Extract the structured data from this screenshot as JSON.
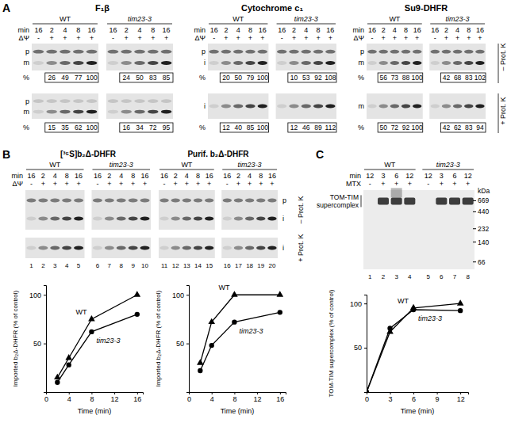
{
  "figure": {
    "panel_a": {
      "letter": "A",
      "groups": [
        "WT",
        "tim23-3"
      ],
      "min_label": "min",
      "min": [
        "16",
        "2",
        "4",
        "8",
        "16",
        "16",
        "2",
        "4",
        "8",
        "16"
      ],
      "dpsi_label": "ΔΨ",
      "dpsi": [
        "-",
        "+",
        "+",
        "+",
        "+",
        "-",
        "+",
        "+",
        "+",
        "+"
      ],
      "pct_label": "%",
      "minus_pk": "– Prot. K",
      "plus_pk": "+ Prot. K",
      "gels": [
        {
          "title": "F₁β",
          "upper_bands": [
            "p",
            "m"
          ],
          "lower_bands": [
            "p",
            "m"
          ],
          "upper_pct": [
            [
              26,
              49,
              77,
              100
            ],
            [
              24,
              50,
              83,
              85
            ]
          ],
          "lower_pct": [
            [
              15,
              35,
              62,
              100
            ],
            [
              16,
              34,
              72,
              95
            ]
          ]
        },
        {
          "title": "Cytochrome c₁",
          "upper_bands": [
            "p",
            "i"
          ],
          "lower_bands": [
            "i"
          ],
          "upper_pct": [
            [
              20,
              50,
              79,
              100
            ],
            [
              10,
              53,
              92,
              108
            ]
          ],
          "lower_pct": [
            [
              12,
              40,
              85,
              100
            ],
            [
              12,
              46,
              89,
              112
            ]
          ]
        },
        {
          "title": "Su9-DHFR",
          "upper_bands": [
            "p",
            "m"
          ],
          "lower_bands": [
            "m"
          ],
          "upper_pct": [
            [
              56,
              73,
              88,
              100
            ],
            [
              42,
              68,
              83,
              102
            ]
          ],
          "lower_pct": [
            [
              50,
              72,
              92,
              100
            ],
            [
              42,
              62,
              83,
              94
            ]
          ]
        }
      ]
    },
    "panel_b": {
      "letter": "B",
      "groups": [
        "WT",
        "tim23-3"
      ],
      "min_label": "min",
      "dpsi_label": "ΔΨ",
      "minus_pk": "– Prot. K",
      "plus_pk": "+ Prot. K",
      "upper_bands": [
        "p",
        "i"
      ],
      "lower_bands": [
        "i"
      ],
      "gels": [
        {
          "title": "[³⁵S]b₂Δ-DHFR",
          "min": [
            "16",
            "2",
            "4",
            "8",
            "16",
            "16",
            "2",
            "4",
            "8",
            "16"
          ],
          "dpsi": [
            "-",
            "+",
            "+",
            "+",
            "+",
            "-",
            "+",
            "+",
            "+",
            "+"
          ],
          "lanes": [
            "1",
            "2",
            "3",
            "4",
            "5",
            "6",
            "7",
            "8",
            "9",
            "10"
          ]
        },
        {
          "title": "Purif. b₂Δ-DHFR",
          "min": [
            "16",
            "2",
            "4",
            "8",
            "16",
            "16",
            "2",
            "4",
            "8",
            "16"
          ],
          "dpsi": [
            "-",
            "+",
            "+",
            "+",
            "+",
            "-",
            "+",
            "+",
            "+",
            "+"
          ],
          "lanes": [
            "11",
            "12",
            "13",
            "14",
            "15",
            "16",
            "17",
            "18",
            "19",
            "20"
          ]
        }
      ]
    },
    "panel_c": {
      "letter": "C",
      "groups": [
        "WT",
        "tim23-3"
      ],
      "min_label": "min",
      "min": [
        "12",
        "3",
        "6",
        "12",
        "12",
        "3",
        "6",
        "12"
      ],
      "mtx_label": "MTX",
      "mtx": [
        "-",
        "+",
        "+",
        "+",
        "-",
        "+",
        "+",
        "+"
      ],
      "kda_label": "kDa",
      "markers": [
        669,
        440,
        232,
        140,
        66
      ],
      "complex_label": [
        "TOM-TIM",
        "supercomplex"
      ],
      "lanes": [
        "1",
        "2",
        "3",
        "4",
        "5",
        "6",
        "7",
        "8"
      ]
    }
  },
  "chart_data": [
    {
      "type": "line",
      "xlabel": "Time (min)",
      "ylabel": "Imported b₂Δ-DHFR (% of control)",
      "x": [
        2,
        4,
        8,
        16
      ],
      "xlim": [
        0,
        17
      ],
      "xticks": [
        0,
        4,
        8,
        12,
        16
      ],
      "ylim": [
        0,
        110
      ],
      "yticks": [
        50,
        100
      ],
      "series": [
        {
          "name": "WT",
          "color": "#000000",
          "marker": "triangle",
          "values": [
            15,
            35,
            75,
            100
          ]
        },
        {
          "name": "tim23-3",
          "color": "#000000",
          "marker": "circle",
          "values": [
            10,
            28,
            62,
            80
          ]
        }
      ]
    },
    {
      "type": "line",
      "xlabel": "Time (min)",
      "ylabel": "Imported b₂Δ-DHFR (% of control)",
      "x": [
        2,
        4,
        8,
        16
      ],
      "xlim": [
        0,
        17
      ],
      "xticks": [
        0,
        4,
        8,
        12,
        16
      ],
      "ylim": [
        0,
        110
      ],
      "yticks": [
        50,
        100
      ],
      "series": [
        {
          "name": "WT",
          "color": "#000000",
          "marker": "triangle",
          "values": [
            30,
            72,
            100,
            100
          ]
        },
        {
          "name": "tim23-3",
          "color": "#000000",
          "marker": "circle",
          "values": [
            22,
            48,
            72,
            82
          ]
        }
      ]
    },
    {
      "type": "line",
      "xlabel": "Time (min)",
      "ylabel": "TOM-TIM supercomplex (% of control)",
      "x": [
        0,
        3,
        6,
        12
      ],
      "xlim": [
        0,
        13
      ],
      "xticks": [
        0,
        3,
        6,
        9,
        12
      ],
      "ylim": [
        0,
        110
      ],
      "yticks": [
        50,
        100
      ],
      "series": [
        {
          "name": "WT",
          "color": "#000000",
          "marker": "triangle",
          "values": [
            0,
            68,
            95,
            100
          ]
        },
        {
          "name": "tim23-3",
          "color": "#000000",
          "marker": "circle",
          "values": [
            0,
            72,
            93,
            92
          ]
        }
      ]
    }
  ]
}
